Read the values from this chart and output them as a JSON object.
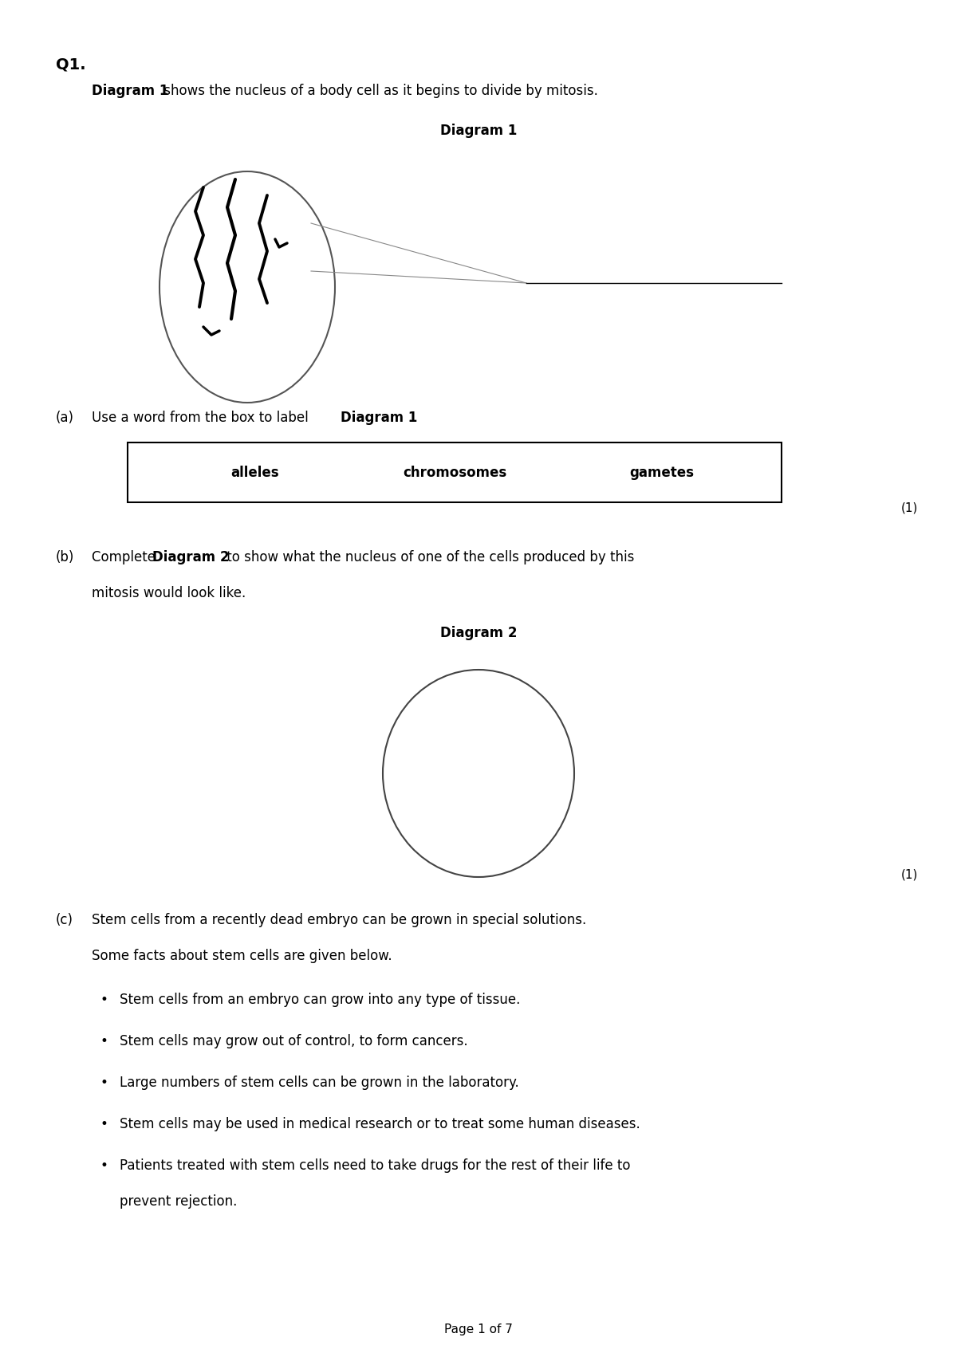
{
  "title": "Q1.",
  "bg_color": "#ffffff",
  "text_color": "#000000",
  "q1_label": "Q1.",
  "diagram1_intro_bold": "Diagram 1",
  "diagram1_intro_rest": " shows the nucleus of a body cell as it begins to divide by mitosis.",
  "diagram1_title": "Diagram 1",
  "part_a_label": "(a)",
  "part_a_text_bold": "",
  "part_a_text": "Use a word from the box to label ",
  "part_a_bold2": "Diagram 1",
  "part_a_end": ".",
  "box_words": [
    "alleles",
    "chromosomes",
    "gametes"
  ],
  "part_b_label": "(b)",
  "part_b_text1": "Complete ",
  "part_b_bold": "Diagram 2",
  "part_b_text2": " to show what the nucleus of one of the cells produced by this",
  "part_b_text3": "mitosis would look like.",
  "diagram2_title": "Diagram 2",
  "part_c_label": "(c)",
  "part_c_text1": "Stem cells from a recently dead embryo can be grown in special solutions.",
  "part_c_text2": "Some facts about stem cells are given below.",
  "bullet_points": [
    "Stem cells from an embryo can grow into any type of tissue.",
    "Stem cells may grow out of control, to form cancers.",
    "Large numbers of stem cells can be grown in the laboratory.",
    "Stem cells may be used in medical research or to treat some human diseases.",
    "Patients treated with stem cells need to take drugs for the rest of their life to\nprevent rejection."
  ],
  "page_footer": "Page 1 of 7",
  "mark1": "(1)",
  "mark2": "(1)"
}
